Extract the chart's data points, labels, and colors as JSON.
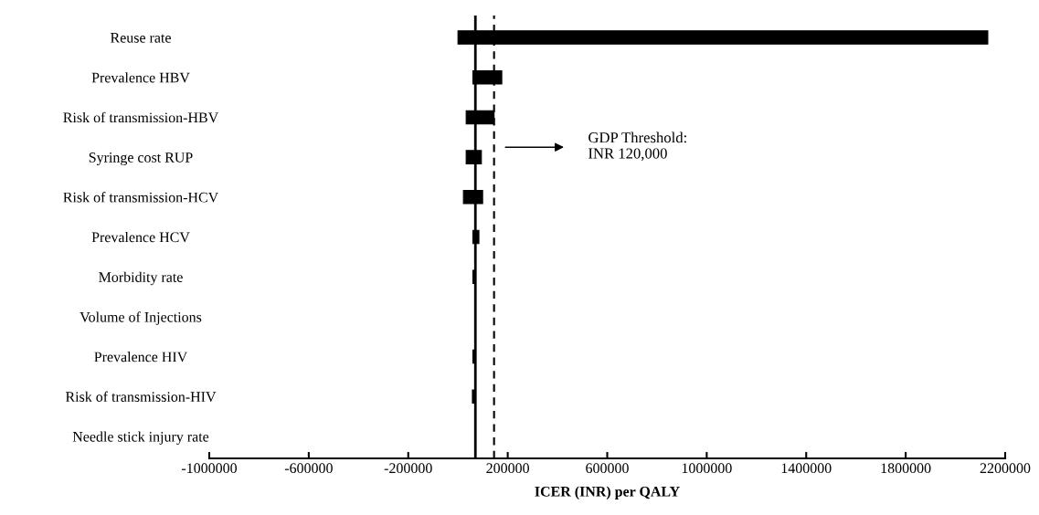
{
  "chart_data": {
    "type": "bar",
    "orientation": "horizontal",
    "xlabel": "ICER (INR) per QALY",
    "categories": [
      "Reuse rate",
      "Prevalence HBV",
      "Risk of transmission-HBV",
      "Syringe cost RUP",
      "Risk of transmission-HCV",
      "Prevalence HCV",
      "Morbidity rate",
      "Volume of Injections",
      "Prevalence HIV",
      "Risk of transmission-HIV",
      "Needle stick injury rate"
    ],
    "base": [
      0,
      60000,
      33000,
      33000,
      22000,
      60000,
      60000,
      70000,
      60000,
      58000,
      70000
    ],
    "values": [
      2130000,
      116000,
      112000,
      61000,
      77000,
      24000,
      10000,
      0,
      10000,
      12000,
      0
    ],
    "color": "#000000",
    "xlim": [
      -1000000,
      2200000
    ],
    "xticks": [
      -1000000,
      -600000,
      -200000,
      200000,
      600000,
      1000000,
      1400000,
      1800000,
      2200000
    ],
    "ref_lines": [
      {
        "axis": "x",
        "value": 70000,
        "color": "#000000",
        "line_style": "solid"
      },
      {
        "axis": "x",
        "value": 145000,
        "color": "#000000",
        "line_style": "dashed"
      }
    ],
    "annotations": [
      "GDP Threshold:\nINR 120,000"
    ],
    "grid": false,
    "legend": false
  }
}
